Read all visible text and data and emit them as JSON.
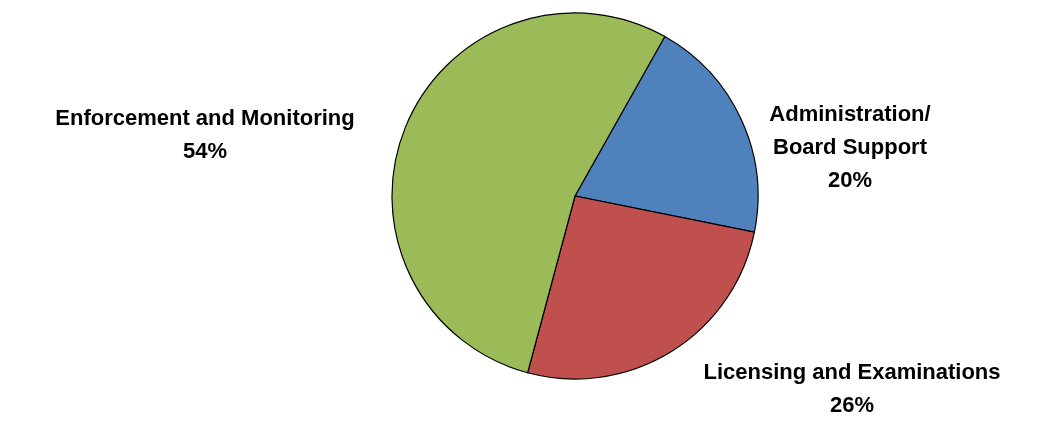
{
  "chart_data": {
    "type": "pie",
    "categories": [
      "Administration/\nBoard Support",
      "Licensing and Examinations",
      "Enforcement and Monitoring"
    ],
    "values": [
      20,
      26,
      54
    ],
    "value_labels": [
      "20%",
      "26%",
      "54%"
    ],
    "colors": [
      "#4f81bd",
      "#c0504d",
      "#9bbb59"
    ]
  }
}
